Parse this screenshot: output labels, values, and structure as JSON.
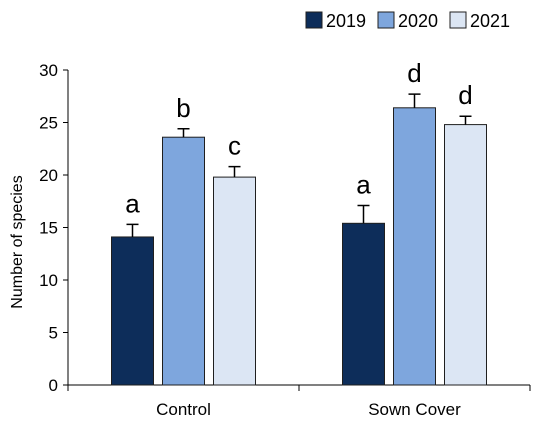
{
  "chart_data": {
    "type": "bar",
    "categories": [
      "Control",
      "Sown Cover"
    ],
    "series": [
      {
        "name": "2019",
        "color": "#0d2d5a",
        "values": [
          14.1,
          15.4
        ],
        "errors": [
          1.2,
          1.7
        ],
        "letters": [
          "a",
          "a"
        ]
      },
      {
        "name": "2020",
        "color": "#7ea6dd",
        "values": [
          23.6,
          26.4
        ],
        "errors": [
          0.8,
          1.3
        ],
        "letters": [
          "b",
          "d"
        ]
      },
      {
        "name": "2021",
        "color": "#dce6f4",
        "values": [
          19.8,
          24.8
        ],
        "errors": [
          1.0,
          0.8
        ],
        "letters": [
          "c",
          "d"
        ]
      }
    ],
    "title": "",
    "xlabel": "",
    "ylabel": "Number of species",
    "ylim": [
      0,
      30
    ],
    "yticks": [
      0,
      5,
      10,
      15,
      20,
      25,
      30
    ],
    "grid": false,
    "legend_position": "top-right"
  }
}
